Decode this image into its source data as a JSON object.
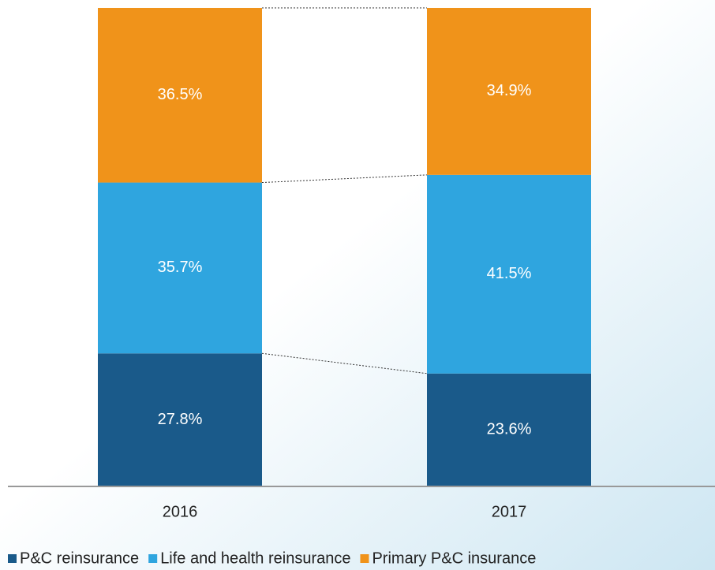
{
  "chart_data": {
    "type": "stacked_bar",
    "categories": [
      "2016",
      "2017"
    ],
    "series": [
      {
        "name": "P&C reinsurance",
        "color": "#1a5a8a",
        "values": [
          27.8,
          23.6
        ],
        "value_labels": [
          "27.8%",
          "23.6%"
        ]
      },
      {
        "name": "Life and health reinsurance",
        "color": "#2fa5df",
        "values": [
          35.7,
          41.5
        ],
        "value_labels": [
          "35.7%",
          "41.5%"
        ]
      },
      {
        "name": "Primary P&C insurance",
        "color": "#f0931a",
        "values": [
          36.5,
          34.9
        ],
        "value_labels": [
          "36.5%",
          "34.9%"
        ]
      }
    ],
    "ylim": [
      0,
      100
    ],
    "legend": "bottom"
  }
}
